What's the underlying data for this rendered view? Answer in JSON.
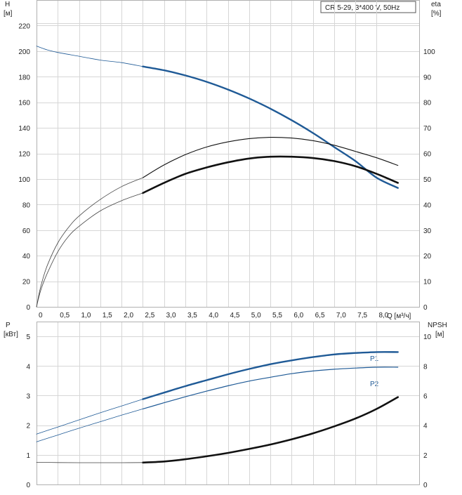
{
  "chart_data": [
    {
      "type": "line",
      "name": "head-efficiency",
      "title": "CR 5-29, 3*400 V, 50Hz",
      "ylabel_left": "H",
      "ylabel_left_unit": "[м]",
      "ylabel_right": "eta",
      "ylabel_right_unit": "[%]",
      "xlabel": "Q [м³/ч]",
      "xlim": [
        0,
        9.0
      ],
      "ylim_left": [
        0,
        240
      ],
      "ylim_right": [
        0,
        120
      ],
      "x_tick_values": [
        0,
        0.5,
        1.0,
        1.5,
        2.0,
        2.5,
        3.0,
        3.5,
        4.0,
        4.5,
        5.0,
        5.5,
        6.0,
        6.5,
        7.0,
        7.5,
        8.0
      ],
      "x_tick_labels": [
        "0",
        "0,5",
        "1,0",
        "1,5",
        "2,0",
        "2,5",
        "3,0",
        "3,5",
        "4,0",
        "4,5",
        "5,0",
        "5,5",
        "6,0",
        "6,5",
        "7,0",
        "7,5",
        "8,0"
      ],
      "y_left_ticks": [
        0,
        20,
        40,
        60,
        80,
        100,
        120,
        140,
        160,
        180,
        200,
        220
      ],
      "y_right_ticks": [
        0,
        10,
        20,
        30,
        40,
        50,
        60,
        70,
        80,
        90,
        100
      ],
      "grid": true,
      "legend_placement": "top-right",
      "series": [
        {
          "axis": "left",
          "color": "#1f5a96",
          "width": 2.4,
          "x": [
            2.5,
            3.0,
            3.5,
            4.0,
            4.5,
            5.0,
            5.5,
            6.0,
            6.5,
            7.0,
            7.5,
            8.0,
            8.5
          ],
          "values": [
            188,
            185,
            181,
            176,
            170,
            163,
            155,
            146,
            136,
            125,
            114,
            101,
            93
          ]
        },
        {
          "axis": "left",
          "color": "#1f5a96",
          "width": 0.8,
          "x": [
            0,
            0.25,
            0.5,
            1.0,
            1.5,
            2.0,
            2.5
          ],
          "values": [
            204,
            201,
            199,
            196,
            193,
            191,
            188
          ]
        },
        {
          "axis": "right",
          "color": "#111111",
          "width": 1.1,
          "x": [
            2.5,
            3.0,
            3.5,
            4.0,
            4.5,
            5.0,
            5.5,
            6.0,
            6.5,
            7.0,
            7.5,
            8.0,
            8.5
          ],
          "values": [
            50.5,
            55.5,
            59.5,
            62.5,
            64.5,
            65.8,
            66.3,
            66.0,
            65.0,
            63.2,
            60.8,
            58.3,
            55.3
          ]
        },
        {
          "axis": "right",
          "color": "#444444",
          "width": 0.8,
          "x": [
            0,
            0.1,
            0.25,
            0.5,
            0.75,
            1.0,
            1.5,
            2.0,
            2.5
          ],
          "values": [
            0,
            8,
            16,
            25,
            31,
            35.5,
            42,
            47,
            50.5
          ]
        },
        {
          "axis": "right",
          "color": "#111111",
          "width": 2.6,
          "x": [
            2.5,
            3.0,
            3.5,
            4.0,
            4.5,
            5.0,
            5.5,
            6.0,
            6.5,
            7.0,
            7.5,
            8.0,
            8.5
          ],
          "values": [
            44.5,
            48.5,
            52.0,
            54.5,
            56.5,
            58.0,
            58.7,
            58.7,
            58.2,
            57.0,
            55.0,
            52.0,
            48.5
          ]
        },
        {
          "axis": "right",
          "color": "#444444",
          "width": 0.8,
          "x": [
            0,
            0.1,
            0.25,
            0.5,
            0.75,
            1.0,
            1.5,
            2.0,
            2.5
          ],
          "values": [
            0,
            6.5,
            13,
            21.5,
            27.5,
            31.5,
            37.5,
            41.5,
            44.5
          ]
        }
      ]
    },
    {
      "type": "line",
      "name": "power-npsh",
      "ylabel_left": "P",
      "ylabel_left_unit": "[кВт]",
      "ylabel_right": "NPSH",
      "ylabel_right_unit": "[м]",
      "xlim": [
        0,
        9.0
      ],
      "ylim_left": [
        0,
        5.5
      ],
      "ylim_right": [
        0,
        11
      ],
      "x_tick_values": [
        0,
        0.5,
        1.0,
        1.5,
        2.0,
        2.5,
        3.0,
        3.5,
        4.0,
        4.5,
        5.0,
        5.5,
        6.0,
        6.5,
        7.0,
        7.5,
        8.0
      ],
      "y_left_ticks": [
        0,
        1,
        2,
        3,
        4,
        5
      ],
      "y_right_ticks": [
        0,
        2,
        4,
        6,
        8,
        10
      ],
      "grid": true,
      "series": [
        {
          "name": "P1",
          "axis": "left",
          "color": "#1f5a96",
          "width": 2.4,
          "x": [
            2.5,
            3.0,
            3.5,
            4.0,
            4.5,
            5.0,
            5.5,
            6.0,
            6.5,
            7.0,
            7.5,
            8.0,
            8.5
          ],
          "values": [
            2.88,
            3.1,
            3.32,
            3.52,
            3.72,
            3.9,
            4.06,
            4.19,
            4.3,
            4.39,
            4.44,
            4.47,
            4.47
          ]
        },
        {
          "axis": "left",
          "color": "#1f5a96",
          "width": 0.8,
          "x": [
            0,
            0.5,
            1.0,
            1.5,
            2.0,
            2.5
          ],
          "values": [
            1.7,
            1.94,
            2.18,
            2.42,
            2.65,
            2.88
          ]
        },
        {
          "name": "P2",
          "axis": "left",
          "color": "#1f5a96",
          "width": 1.2,
          "x": [
            2.5,
            3.0,
            3.5,
            4.0,
            4.5,
            5.0,
            5.5,
            6.0,
            6.5,
            7.0,
            7.5,
            8.0,
            8.5
          ],
          "values": [
            2.55,
            2.76,
            2.96,
            3.15,
            3.33,
            3.49,
            3.62,
            3.74,
            3.83,
            3.89,
            3.93,
            3.96,
            3.96
          ]
        },
        {
          "axis": "left",
          "color": "#1f5a96",
          "width": 0.8,
          "x": [
            0,
            0.5,
            1.0,
            1.5,
            2.0,
            2.5
          ],
          "values": [
            1.44,
            1.67,
            1.9,
            2.12,
            2.34,
            2.55
          ]
        },
        {
          "axis": "right",
          "color": "#111111",
          "width": 2.6,
          "x": [
            2.5,
            3.0,
            3.5,
            4.0,
            4.5,
            5.0,
            5.5,
            6.0,
            6.5,
            7.0,
            7.5,
            8.0,
            8.5
          ],
          "values": [
            1.48,
            1.55,
            1.7,
            1.9,
            2.13,
            2.4,
            2.7,
            3.05,
            3.45,
            3.92,
            4.45,
            5.1,
            5.9
          ]
        },
        {
          "axis": "right",
          "color": "#444444",
          "width": 0.8,
          "x": [
            0,
            0.5,
            1.0,
            1.5,
            2.0,
            2.5
          ],
          "values": [
            1.5,
            1.48,
            1.47,
            1.47,
            1.47,
            1.48
          ]
        }
      ]
    }
  ]
}
